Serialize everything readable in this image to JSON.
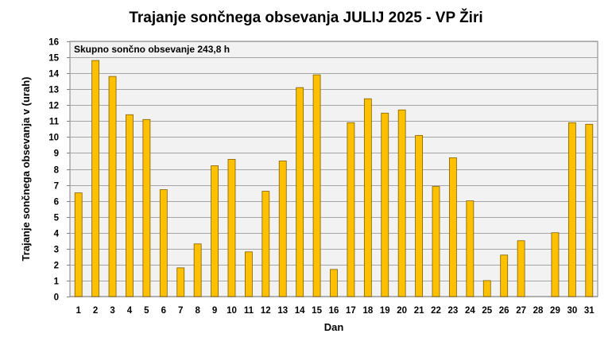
{
  "chart_data": {
    "type": "bar",
    "title": "Trajanje  sončnega obsevanja  JULIJ 2025 - VP Žiri",
    "xlabel": "Dan",
    "ylabel": "Trajanje  sončnega obsevanja  v (urah)",
    "annotation": "Skupno sončno obsevanje 243,8 h",
    "ylim": [
      0,
      16
    ],
    "yticks": [
      "0",
      "1",
      "2",
      "3",
      "4",
      "5",
      "6",
      "7",
      "8",
      "9",
      "10",
      "11",
      "12",
      "13",
      "14",
      "15",
      "16"
    ],
    "grid": true,
    "categories": [
      "1",
      "2",
      "3",
      "4",
      "5",
      "6",
      "7",
      "8",
      "9",
      "10",
      "11",
      "12",
      "13",
      "14",
      "15",
      "16",
      "17",
      "18",
      "19",
      "20",
      "21",
      "22",
      "23",
      "24",
      "25",
      "26",
      "27",
      "28",
      "29",
      "30",
      "31"
    ],
    "values": [
      6.5,
      14.8,
      13.8,
      11.4,
      11.1,
      6.7,
      1.8,
      3.3,
      8.2,
      8.6,
      2.8,
      6.6,
      8.5,
      13.1,
      13.9,
      1.7,
      10.9,
      12.4,
      11.5,
      11.7,
      10.1,
      6.9,
      8.7,
      6.0,
      1.0,
      2.6,
      3.5,
      0,
      4.0,
      10.9,
      10.8
    ],
    "colors": {
      "bar_fill": "#FFC000",
      "bar_stroke": "#7F6000",
      "plot_bg": "#F2F2F2",
      "grid": "#A6A6A6"
    }
  }
}
